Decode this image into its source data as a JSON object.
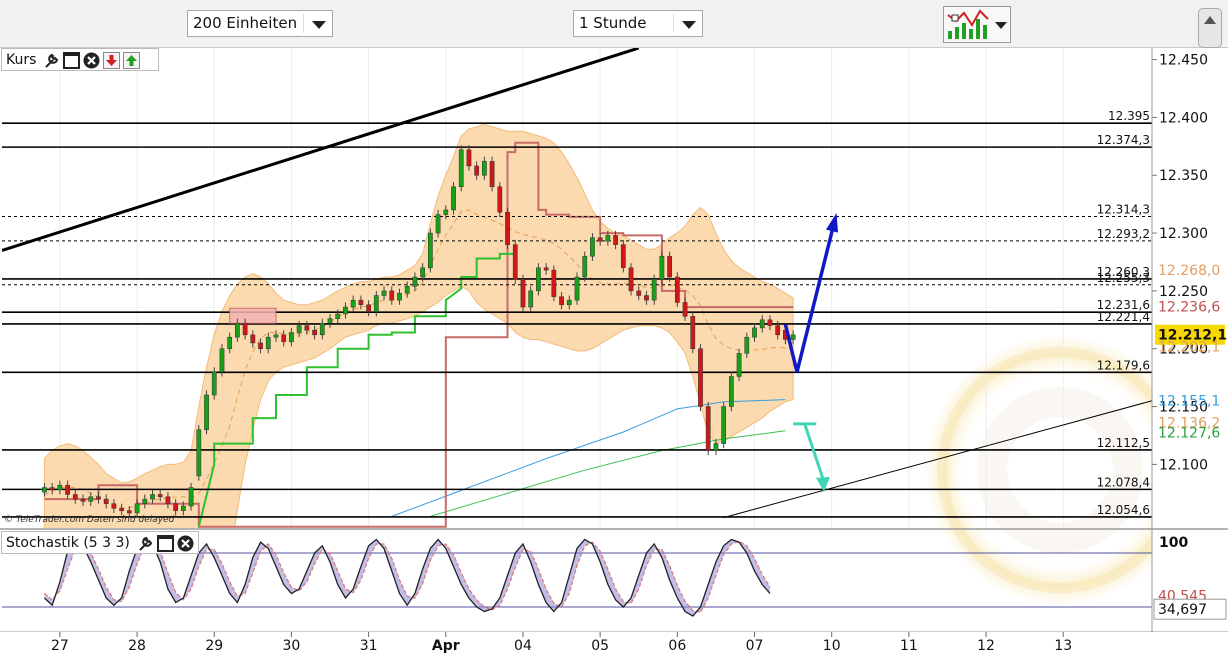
{
  "toolbar": {
    "units_select": {
      "value": "200 Einheiten"
    },
    "interval_select": {
      "value": "1 Stunde"
    },
    "chart_type_icon": "chart-type-icon"
  },
  "price_panel": {
    "label": "Kurs"
  },
  "stoch_panel": {
    "label": "Stochastik (5 3 3)"
  },
  "copyright": "© TeleTrader.com  Daten sind delayed",
  "colors": {
    "candle_up": "#18a018",
    "candle_down": "#d01818",
    "band_fill": "#fbd7a8",
    "band_edge": "#f2b46a",
    "red_line": "#c86a6a",
    "green_line": "#2ec02e",
    "blue_ma": "#3a9ee0",
    "green_ma": "#3cc050",
    "arrow_blue": "#1018c8",
    "arrow_teal": "#40d6b4",
    "trend": "#000000",
    "stoch_k": "#222222",
    "stoch_d": "#e07c7c",
    "stoch_fill": "#8f88d8",
    "label_last": "#f7d900",
    "label_bb_upper": "#e0a060",
    "label_red": "#c05050",
    "label_blue": "#3a9ee0",
    "label_green": "#2aa040"
  },
  "chart_data": [
    {
      "type": "line",
      "panel": "price",
      "ylim": [
        12.045,
        12.46
      ],
      "y_ticks": [
        12.1,
        12.15,
        12.2,
        12.25,
        12.3,
        12.35,
        12.4,
        12.45
      ],
      "y_tick_labels": [
        "12.100",
        "12.150",
        "12.200",
        "12.250",
        "12.300",
        "12.350",
        "12.400",
        "12.450"
      ],
      "x_ticks": [
        {
          "label": "27",
          "pos": 2
        },
        {
          "label": "28",
          "pos": 12
        },
        {
          "label": "29",
          "pos": 22
        },
        {
          "label": "30",
          "pos": 32
        },
        {
          "label": "31",
          "pos": 42
        },
        {
          "label": "Apr",
          "pos": 52,
          "bold": true
        },
        {
          "label": "04",
          "pos": 62
        },
        {
          "label": "05",
          "pos": 72
        },
        {
          "label": "06",
          "pos": 82
        },
        {
          "label": "07",
          "pos": 92
        },
        {
          "label": "10",
          "pos": 102
        },
        {
          "label": "11",
          "pos": 112
        },
        {
          "label": "12",
          "pos": 122
        },
        {
          "label": "13",
          "pos": 132
        }
      ],
      "xlim": [
        -5.5,
        143.5
      ],
      "candles": {
        "start": 0,
        "close": [
          12.08,
          12.078,
          12.082,
          12.074,
          12.07,
          12.068,
          12.072,
          12.07,
          12.066,
          12.062,
          12.06,
          12.058,
          12.066,
          12.07,
          12.074,
          12.072,
          12.066,
          12.06,
          12.064,
          12.08,
          12.13,
          12.16,
          12.18,
          12.2,
          12.21,
          12.222,
          12.212,
          12.205,
          12.2,
          12.21,
          12.212,
          12.206,
          12.214,
          12.22,
          12.216,
          12.212,
          12.222,
          12.226,
          12.23,
          12.236,
          12.242,
          12.238,
          12.232,
          12.246,
          12.25,
          12.242,
          12.248,
          12.254,
          12.262,
          12.27,
          12.3,
          12.316,
          12.32,
          12.34,
          12.372,
          12.358,
          12.35,
          12.362,
          12.34,
          12.318,
          12.29,
          12.26,
          12.236,
          12.25,
          12.27,
          12.268,
          12.245,
          12.238,
          12.242,
          12.262,
          12.28,
          12.296,
          12.293,
          12.298,
          12.29,
          12.27,
          12.25,
          12.246,
          12.242,
          12.26,
          12.28,
          12.262,
          12.24,
          12.228,
          12.2,
          12.15,
          12.112,
          12.118,
          12.15,
          12.176,
          12.196,
          12.21,
          12.218,
          12.225,
          12.22,
          12.212,
          12.208,
          12.212
        ],
        "open": [
          12.076,
          12.08,
          12.078,
          12.082,
          12.074,
          12.07,
          12.068,
          12.072,
          12.07,
          12.066,
          12.062,
          12.06,
          12.058,
          12.066,
          12.07,
          12.074,
          12.072,
          12.066,
          12.06,
          12.064,
          12.09,
          12.13,
          12.16,
          12.18,
          12.2,
          12.21,
          12.222,
          12.212,
          12.205,
          12.2,
          12.21,
          12.212,
          12.206,
          12.214,
          12.22,
          12.216,
          12.212,
          12.222,
          12.226,
          12.23,
          12.236,
          12.242,
          12.238,
          12.232,
          12.246,
          12.25,
          12.242,
          12.248,
          12.254,
          12.262,
          12.27,
          12.3,
          12.316,
          12.32,
          12.34,
          12.372,
          12.358,
          12.35,
          12.362,
          12.34,
          12.318,
          12.29,
          12.26,
          12.236,
          12.25,
          12.27,
          12.268,
          12.245,
          12.238,
          12.242,
          12.262,
          12.28,
          12.296,
          12.293,
          12.298,
          12.29,
          12.27,
          12.25,
          12.246,
          12.242,
          12.26,
          12.28,
          12.262,
          12.24,
          12.228,
          12.2,
          12.15,
          12.112,
          12.118,
          12.15,
          12.176,
          12.196,
          12.21,
          12.218,
          12.225,
          12.22,
          12.216,
          12.208
        ]
      },
      "bollinger_upper": [
        12.105,
        12.112,
        12.116,
        12.118,
        12.116,
        12.112,
        12.106,
        12.1,
        12.092,
        12.088,
        12.084,
        12.085,
        12.088,
        12.092,
        12.095,
        12.098,
        12.1,
        12.1,
        12.102,
        12.112,
        12.15,
        12.184,
        12.212,
        12.232,
        12.246,
        12.256,
        12.262,
        12.265,
        12.262,
        12.256,
        12.248,
        12.242,
        12.24,
        12.238,
        12.238,
        12.24,
        12.242,
        12.246,
        12.25,
        12.253,
        12.256,
        12.258,
        12.258,
        12.26,
        12.262,
        12.262,
        12.264,
        12.268,
        12.272,
        12.282,
        12.308,
        12.332,
        12.35,
        12.366,
        12.384,
        12.39,
        12.392,
        12.394,
        12.392,
        12.39,
        12.388,
        12.388,
        12.388,
        12.386,
        12.384,
        12.382,
        12.378,
        12.37,
        12.36,
        12.348,
        12.334,
        12.32,
        12.31,
        12.304,
        12.3,
        12.298,
        12.294,
        12.29,
        12.286,
        12.286,
        12.29,
        12.296,
        12.3,
        12.306,
        12.316,
        12.322,
        12.316,
        12.3,
        12.286,
        12.276,
        12.27,
        12.266,
        12.262,
        12.258,
        12.256,
        12.252,
        12.248,
        12.244
      ],
      "bollinger_lower": [
        12.042,
        12.042,
        12.043,
        12.043,
        12.044,
        12.044,
        12.044,
        12.043,
        12.043,
        12.042,
        12.041,
        12.04,
        12.04,
        12.041,
        12.042,
        12.043,
        12.043,
        12.043,
        12.042,
        12.03,
        12.0,
        11.99,
        11.99,
        12.0,
        12.02,
        12.06,
        12.1,
        12.13,
        12.156,
        12.172,
        12.18,
        12.184,
        12.186,
        12.188,
        12.19,
        12.192,
        12.196,
        12.2,
        12.205,
        12.21,
        12.212,
        12.214,
        12.216,
        12.22,
        12.222,
        12.222,
        12.224,
        12.226,
        12.228,
        12.232,
        12.236,
        12.24,
        12.246,
        12.25,
        12.254,
        12.25,
        12.24,
        12.234,
        12.23,
        12.226,
        12.222,
        12.214,
        12.21,
        12.208,
        12.208,
        12.206,
        12.204,
        12.202,
        12.2,
        12.198,
        12.198,
        12.2,
        12.204,
        12.208,
        12.212,
        12.216,
        12.218,
        12.22,
        12.22,
        12.22,
        12.218,
        12.214,
        12.206,
        12.196,
        12.176,
        12.152,
        12.126,
        12.118,
        12.12,
        12.124,
        12.128,
        12.132,
        12.136,
        12.14,
        12.146,
        12.15,
        12.154,
        12.156
      ],
      "red_stop_line": {
        "x": [
          0,
          7,
          7,
          12,
          12,
          20,
          20,
          52,
          52,
          60,
          60,
          61,
          61,
          64,
          64,
          65,
          65,
          68,
          68,
          72,
          72,
          75,
          75,
          80,
          80,
          83,
          83,
          85,
          85,
          97
        ],
        "y": [
          12.07,
          12.07,
          12.082,
          12.082,
          12.066,
          12.066,
          12.046,
          12.046,
          12.21,
          12.21,
          12.37,
          12.37,
          12.378,
          12.378,
          12.32,
          12.32,
          12.316,
          12.316,
          12.314,
          12.314,
          12.3,
          12.3,
          12.298,
          12.298,
          12.25,
          12.25,
          12.236,
          12.236,
          12.236,
          12.236
        ]
      },
      "green_stop_line": {
        "x": [
          20,
          22,
          22,
          27,
          27,
          30,
          30,
          34,
          34,
          38,
          38,
          42,
          42,
          45,
          45,
          48,
          48,
          52,
          52,
          54,
          54,
          56,
          56,
          59,
          59,
          61
        ],
        "y": [
          12.046,
          12.1,
          12.118,
          12.118,
          12.14,
          12.14,
          12.16,
          12.16,
          12.184,
          12.184,
          12.2,
          12.2,
          12.212,
          12.212,
          12.214,
          12.214,
          12.228,
          12.228,
          12.242,
          12.252,
          12.262,
          12.262,
          12.278,
          12.278,
          12.282,
          12.282
        ]
      },
      "blue_ma": {
        "x": [
          45,
          55,
          65,
          75,
          82,
          88,
          96
        ],
        "y": [
          12.055,
          12.08,
          12.105,
          12.128,
          12.148,
          12.154,
          12.156
        ]
      },
      "green_ma": {
        "x": [
          50,
          60,
          70,
          80,
          88,
          96
        ],
        "y": [
          12.055,
          12.075,
          12.095,
          12.112,
          12.122,
          12.129
        ]
      },
      "horizontal_lines": [
        {
          "y": 12.395,
          "style": "solid",
          "label": "12.395"
        },
        {
          "y": 12.3743,
          "style": "solid",
          "label": "12.374,3"
        },
        {
          "y": 12.3143,
          "style": "dashed",
          "label": "12.314,3"
        },
        {
          "y": 12.2932,
          "style": "dashed",
          "label": "12.293,2"
        },
        {
          "y": 12.2603,
          "style": "solid",
          "label": "12.260,3"
        },
        {
          "y": 12.2553,
          "style": "dashed",
          "label": "12.255,3"
        },
        {
          "y": 12.2316,
          "style": "solid",
          "label": "12.231,6"
        },
        {
          "y": 12.2214,
          "style": "solid",
          "label": "12.221,4"
        },
        {
          "y": 12.1796,
          "style": "solid",
          "label": "12.179,6"
        },
        {
          "y": 12.1125,
          "style": "solid",
          "label": "12.112,5"
        },
        {
          "y": 12.0784,
          "style": "solid",
          "label": "12.078,4"
        },
        {
          "y": 12.0546,
          "style": "solid",
          "label": "12.054,6"
        }
      ],
      "trendlines": [
        {
          "x1": -5.5,
          "y1": 12.285,
          "x2": 77,
          "y2": 12.46,
          "width": 3
        },
        {
          "x1": 88,
          "y1": 12.054,
          "x2": 143.5,
          "y2": 12.155,
          "width": 1
        }
      ],
      "annotations": {
        "blue_arrow": {
          "x": [
            96,
            97.5,
            102.5
          ],
          "y": [
            12.221,
            12.18,
            12.314
          ]
        },
        "teal_arrow": {
          "x": [
            97,
            100,
            101
          ],
          "y": [
            12.135,
            12.135,
            12.078
          ]
        },
        "resistance_box": {
          "x0": 24,
          "x1": 30,
          "y0": 12.222,
          "y1": 12.235
        }
      },
      "price_labels": [
        {
          "text": "12.268,0",
          "y": 12.268,
          "color_key": "label_bb_upper"
        },
        {
          "text": "12.236,6",
          "y": 12.2366,
          "color_key": "label_red"
        },
        {
          "text": "12.212,1",
          "y": 12.2121,
          "color_key": "label_last",
          "bg": true
        },
        {
          "text": "12.202,1",
          "y": 12.2021,
          "color_key": "label_bb_upper"
        },
        {
          "text": "12.155,1",
          "y": 12.1551,
          "color_key": "label_blue"
        },
        {
          "text": "12.136,2",
          "y": 12.1362,
          "color_key": "label_bb_upper"
        },
        {
          "text": "12.127,6",
          "y": 12.1276,
          "color_key": "label_green"
        }
      ]
    },
    {
      "type": "line",
      "panel": "stochastic",
      "ylim": [
        0,
        100
      ],
      "y_tick_labels": [
        "100"
      ],
      "levels": [
        80,
        20
      ],
      "k_last": "40,545",
      "d_last": "34,697",
      "k": [
        30,
        22,
        48,
        82,
        95,
        88,
        70,
        50,
        30,
        22,
        30,
        60,
        85,
        96,
        90,
        70,
        40,
        25,
        30,
        55,
        80,
        90,
        75,
        55,
        35,
        25,
        45,
        75,
        92,
        85,
        65,
        45,
        35,
        40,
        60,
        80,
        88,
        70,
        45,
        30,
        40,
        65,
        88,
        95,
        85,
        60,
        35,
        22,
        35,
        62,
        85,
        95,
        85,
        65,
        45,
        30,
        20,
        15,
        18,
        30,
        55,
        80,
        90,
        70,
        45,
        25,
        15,
        25,
        55,
        85,
        95,
        90,
        70,
        45,
        28,
        20,
        30,
        55,
        80,
        90,
        75,
        50,
        30,
        15,
        10,
        20,
        45,
        70,
        88,
        95,
        92,
        80,
        60,
        45,
        35
      ],
      "d": [
        35,
        28,
        38,
        62,
        85,
        90,
        80,
        62,
        42,
        28,
        26,
        42,
        68,
        88,
        93,
        82,
        58,
        36,
        28,
        40,
        65,
        84,
        84,
        68,
        48,
        32,
        35,
        58,
        82,
        90,
        78,
        58,
        42,
        38,
        48,
        68,
        84,
        80,
        60,
        40,
        36,
        50,
        74,
        90,
        90,
        74,
        50,
        32,
        30,
        46,
        72,
        88,
        90,
        78,
        58,
        40,
        28,
        20,
        17,
        22,
        40,
        64,
        84,
        82,
        62,
        40,
        24,
        20,
        35,
        66,
        88,
        92,
        82,
        62,
        40,
        26,
        24,
        40,
        66,
        84,
        84,
        66,
        44,
        26,
        16,
        14,
        30,
        55,
        78,
        90,
        93,
        88,
        74,
        56,
        42
      ]
    }
  ]
}
